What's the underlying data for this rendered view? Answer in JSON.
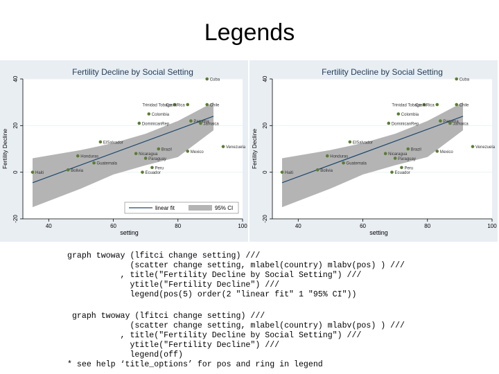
{
  "slide": {
    "title": "Legends",
    "code_block_1": "graph twoway (lfitci change setting) ///\n             (scatter change setting, mlabel(country) mlabv(pos) ) ///\n           , title(\"Fertility Decline by Social Setting\") ///\n             ytitle(\"Fertility Decline\") ///\n             legend(pos(5) order(2 \"linear fit\" 1 \"95% CI\"))",
    "code_block_2": " graph twoway (lfitci change setting) ///\n             (scatter change setting, mlabel(country) mlabv(pos) ) ///\n           , title(\"Fertility Decline by Social Setting\") ///\n             ytitle(\"Fertility Decline\") ///\n             legend(off)\n* see help ‘title_options’ for pos and ring in legend"
  },
  "colors": {
    "panel_bg": "#e9eef3",
    "plot_bg": "#ffffff",
    "marker": "#5a7d32",
    "fit_line": "#1a476f",
    "ci_band": "#b4b4b4",
    "title_text": "#1e3c5a"
  },
  "chart_data": [
    {
      "type": "scatter",
      "title": "Fertility Decline by Social Setting",
      "xlabel": "setting",
      "ylabel": "Fertility Decline",
      "xlim": [
        32,
        100
      ],
      "ylim": [
        -20,
        40
      ],
      "xticks": [
        "40",
        "60",
        "80",
        "100"
      ],
      "yticks": [
        "-20",
        "0",
        "20",
        "40"
      ],
      "grid": true,
      "legend_position": "bottom-right",
      "legend": [
        {
          "label": "linear fit",
          "kind": "line"
        },
        {
          "label": "95% CI",
          "kind": "band"
        }
      ],
      "fit": {
        "x": [
          35,
          91
        ],
        "y": [
          -4.5,
          24
        ]
      },
      "ci_band": {
        "x": [
          35,
          50,
          60,
          70,
          80,
          91
        ],
        "upper": [
          6,
          9.5,
          12.5,
          16.5,
          22,
          30
        ],
        "lower": [
          -15,
          -7,
          -1,
          3,
          6.5,
          18
        ]
      },
      "points": [
        {
          "country": "Cuba",
          "x": 89,
          "y": 40
        },
        {
          "country": "Trinidad Tobago",
          "x": 79,
          "y": 29,
          "label_pos": "left"
        },
        {
          "country": "CostaRica",
          "x": 83,
          "y": 29,
          "label_pos": "left"
        },
        {
          "country": "Chile",
          "x": 89,
          "y": 29
        },
        {
          "country": "Colombia",
          "x": 71,
          "y": 25
        },
        {
          "country": "Panama",
          "x": 84,
          "y": 22
        },
        {
          "country": "DominicanRep",
          "x": 68,
          "y": 21
        },
        {
          "country": "Jamaica",
          "x": 87,
          "y": 21
        },
        {
          "country": "ElSalvador",
          "x": 56,
          "y": 13
        },
        {
          "country": "Venezuela",
          "x": 94,
          "y": 11
        },
        {
          "country": "Brazil",
          "x": 74,
          "y": 10
        },
        {
          "country": "Mexico",
          "x": 83,
          "y": 9
        },
        {
          "country": "Nicaragua",
          "x": 67,
          "y": 8
        },
        {
          "country": "Honduras",
          "x": 49,
          "y": 7
        },
        {
          "country": "Paraguay",
          "x": 70,
          "y": 6
        },
        {
          "country": "Guatemala",
          "x": 54,
          "y": 4
        },
        {
          "country": "Peru",
          "x": 72,
          "y": 2
        },
        {
          "country": "Bolivia",
          "x": 46,
          "y": 1
        },
        {
          "country": "Haiti",
          "x": 35,
          "y": 0
        },
        {
          "country": "Ecuador",
          "x": 69,
          "y": 0
        }
      ]
    },
    {
      "type": "scatter",
      "title": "Fertility Decline by Social Setting",
      "xlabel": "setting",
      "ylabel": "Fertility Decline",
      "xlim": [
        32,
        100
      ],
      "ylim": [
        -20,
        40
      ],
      "xticks": [
        "40",
        "60",
        "80",
        "100"
      ],
      "yticks": [
        "-20",
        "0",
        "20",
        "40"
      ],
      "grid": true,
      "legend": [],
      "fit": {
        "x": [
          35,
          91
        ],
        "y": [
          -4.5,
          24
        ]
      },
      "ci_band": {
        "x": [
          35,
          50,
          60,
          70,
          80,
          91
        ],
        "upper": [
          6,
          9.5,
          12.5,
          16.5,
          22,
          30
        ],
        "lower": [
          -15,
          -7,
          -1,
          3,
          6.5,
          18
        ]
      },
      "points": [
        {
          "country": "Cuba",
          "x": 89,
          "y": 40
        },
        {
          "country": "Trinidad Tobago",
          "x": 79,
          "y": 29,
          "label_pos": "left"
        },
        {
          "country": "CostaRica",
          "x": 83,
          "y": 29,
          "label_pos": "left"
        },
        {
          "country": "Chile",
          "x": 89,
          "y": 29
        },
        {
          "country": "Colombia",
          "x": 71,
          "y": 25
        },
        {
          "country": "Panama",
          "x": 84,
          "y": 22
        },
        {
          "country": "DominicanRep",
          "x": 68,
          "y": 21
        },
        {
          "country": "Jamaica",
          "x": 87,
          "y": 21
        },
        {
          "country": "ElSalvador",
          "x": 56,
          "y": 13
        },
        {
          "country": "Venezuela",
          "x": 94,
          "y": 11
        },
        {
          "country": "Brazil",
          "x": 74,
          "y": 10
        },
        {
          "country": "Mexico",
          "x": 83,
          "y": 9
        },
        {
          "country": "Nicaragua",
          "x": 67,
          "y": 8
        },
        {
          "country": "Honduras",
          "x": 49,
          "y": 7
        },
        {
          "country": "Paraguay",
          "x": 70,
          "y": 6
        },
        {
          "country": "Guatemala",
          "x": 54,
          "y": 4
        },
        {
          "country": "Peru",
          "x": 72,
          "y": 2
        },
        {
          "country": "Bolivia",
          "x": 46,
          "y": 1
        },
        {
          "country": "Haiti",
          "x": 35,
          "y": 0
        },
        {
          "country": "Ecuador",
          "x": 69,
          "y": 0
        }
      ]
    }
  ]
}
